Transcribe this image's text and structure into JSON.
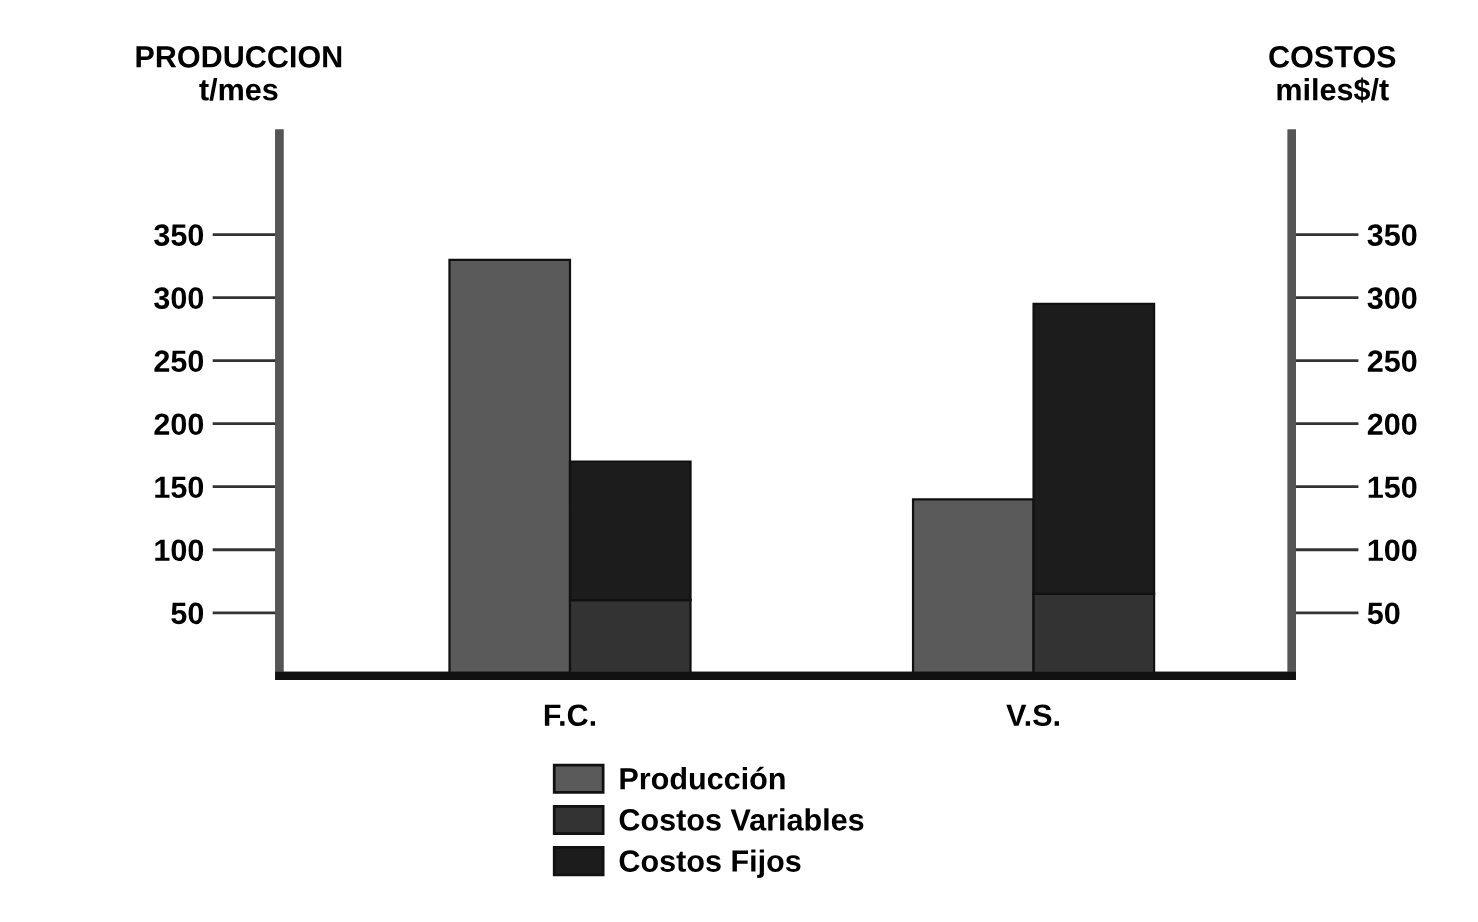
{
  "chart_data": {
    "type": "bar",
    "ylabel": "PRODUCCION\nt/mes",
    "y2label": "COSTOS\nmiles$/t",
    "categories": [
      "F.C.",
      "V.S."
    ],
    "series": [
      {
        "name": "Producción",
        "color": "#5a5a5a",
        "values": [
          330,
          140
        ],
        "axis": "y"
      },
      {
        "name": "Costos Variables",
        "color": "#333333",
        "values": [
          60,
          65
        ],
        "axis": "y2"
      },
      {
        "name": "Costos Fijos",
        "color": "#1c1c1c",
        "values": [
          110,
          230
        ],
        "axis": "y2"
      }
    ],
    "stacked": true,
    "ylim": [
      0,
      430
    ],
    "yticks": [
      50,
      100,
      150,
      200,
      250,
      300,
      350
    ],
    "y2lim": [
      0,
      430
    ],
    "y2ticks": [
      50,
      100,
      150,
      200,
      250,
      300,
      350
    ],
    "grid": false,
    "legend": "bottom"
  }
}
